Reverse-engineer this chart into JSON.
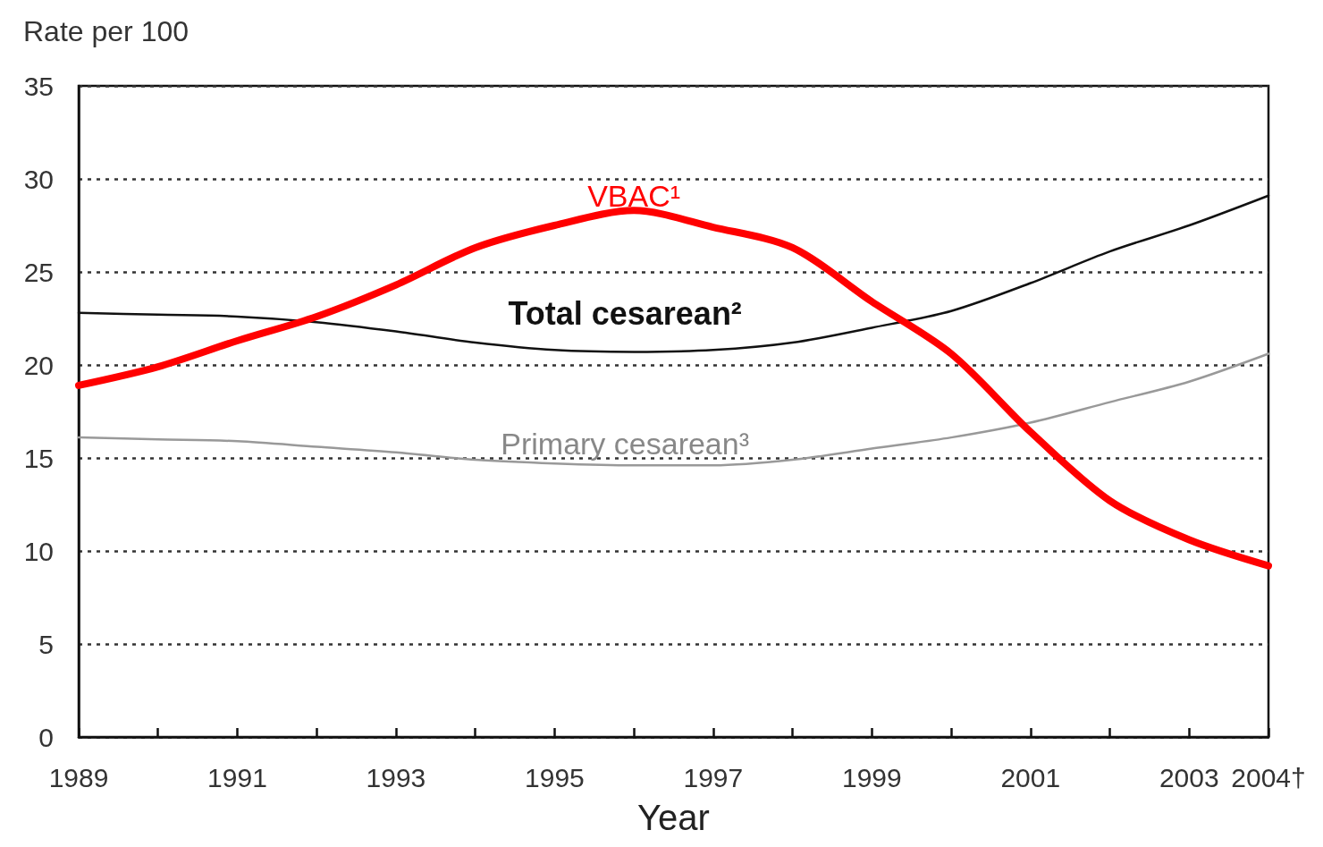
{
  "chart_data": {
    "type": "line",
    "ylabel": "Rate per 100",
    "xlabel": "Year",
    "x": [
      1989,
      1990,
      1991,
      1992,
      1993,
      1994,
      1995,
      1996,
      1997,
      1998,
      1999,
      2000,
      2001,
      2002,
      2003,
      2004
    ],
    "xlim": [
      1989,
      2004
    ],
    "xticks": [
      1989,
      {
        "value": 1990,
        "label": null
      },
      1991,
      {
        "value": 1992,
        "label": null
      },
      1993,
      {
        "value": 1994,
        "label": null
      },
      1995,
      {
        "value": 1996,
        "label": null
      },
      1997,
      {
        "value": 1998,
        "label": null
      },
      1999,
      {
        "value": 2000,
        "label": null
      },
      2001,
      {
        "value": 2002,
        "label": null
      },
      2003,
      {
        "value": 2004,
        "label": "2004†"
      }
    ],
    "ylim": [
      0,
      35
    ],
    "yticks": [
      0,
      5,
      10,
      15,
      20,
      25,
      30,
      35
    ],
    "grid": "y",
    "legend": false,
    "marker": "none",
    "line_style": "solid",
    "series": [
      {
        "name": "VBAC¹",
        "color": "#ff0000",
        "values": [
          18.9,
          19.9,
          21.3,
          22.6,
          24.3,
          26.3,
          27.5,
          28.3,
          27.4,
          26.3,
          23.4,
          20.6,
          16.4,
          12.7,
          10.6,
          9.2
        ]
      },
      {
        "name": "Total cesarean²",
        "color": "#111111",
        "values": [
          22.8,
          22.7,
          22.6,
          22.3,
          21.8,
          21.2,
          20.8,
          20.7,
          20.8,
          21.2,
          22.0,
          22.9,
          24.4,
          26.1,
          27.5,
          29.1
        ]
      },
      {
        "name": "Primary cesarean³",
        "color": "#999999",
        "values": [
          16.1,
          16.0,
          15.9,
          15.6,
          15.3,
          14.9,
          14.7,
          14.6,
          14.6,
          14.9,
          15.5,
          16.1,
          16.9,
          18.0,
          19.1,
          20.6
        ]
      }
    ]
  }
}
